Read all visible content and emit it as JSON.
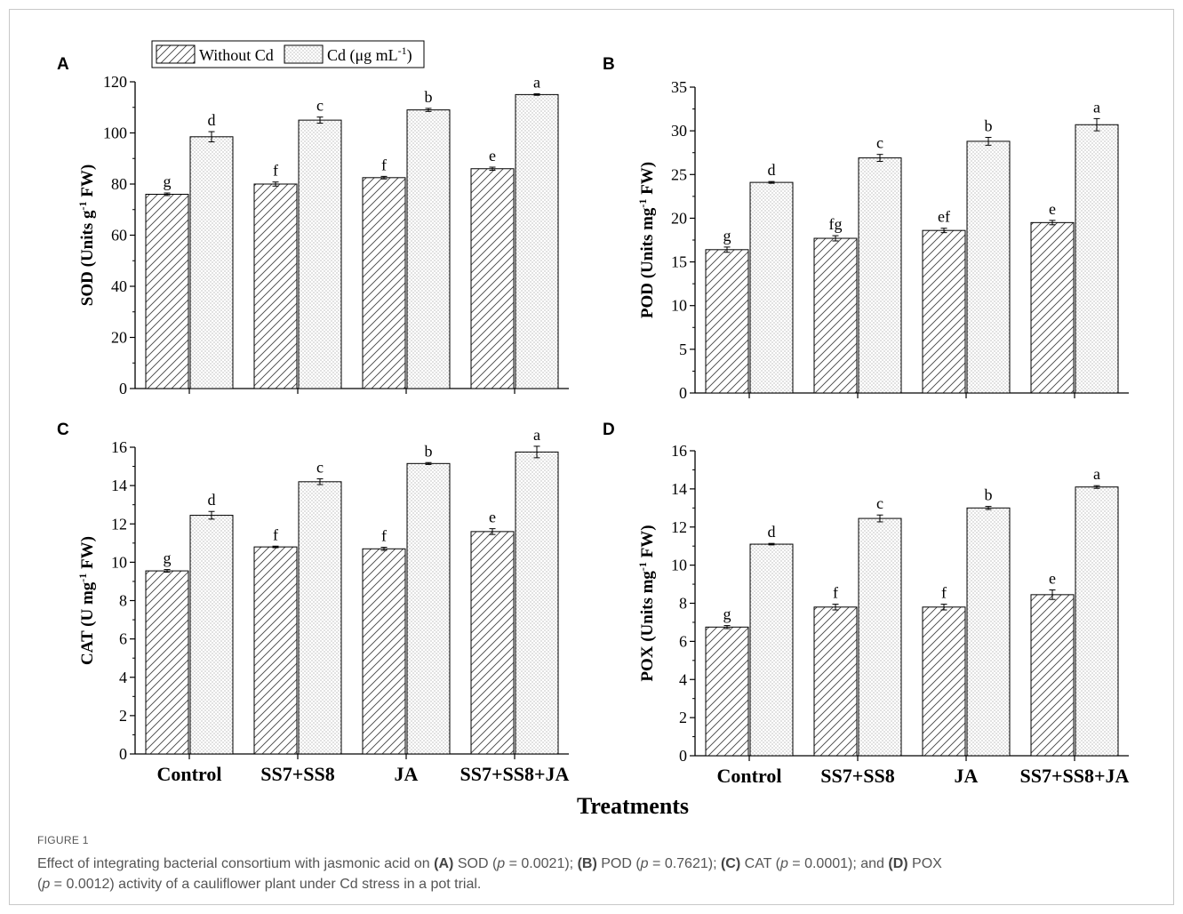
{
  "legend": {
    "items": [
      {
        "label_main": "Without Cd",
        "label_sup": "",
        "label_end": "",
        "pattern": "hatch"
      },
      {
        "label_main": "Cd (μg mL",
        "label_sup": "-1",
        "label_end": ")",
        "pattern": "dots"
      }
    ]
  },
  "x_title": "Treatments",
  "caption": {
    "label": "FIGURE 1",
    "parts": [
      {
        "t": "Effect of integrating bacterial consortium with jasmonic acid on ",
        "s": ""
      },
      {
        "t": "(A)",
        "s": "b"
      },
      {
        "t": " SOD (",
        "s": ""
      },
      {
        "t": "p",
        "s": "i"
      },
      {
        "t": " = 0.0021); ",
        "s": ""
      },
      {
        "t": "(B)",
        "s": "b"
      },
      {
        "t": " POD (",
        "s": ""
      },
      {
        "t": "p",
        "s": "i"
      },
      {
        "t": " = 0.7621); ",
        "s": ""
      },
      {
        "t": "(C)",
        "s": "b"
      },
      {
        "t": " CAT (",
        "s": ""
      },
      {
        "t": "p",
        "s": "i"
      },
      {
        "t": " = 0.0001); and ",
        "s": ""
      },
      {
        "t": "(D)",
        "s": "b"
      },
      {
        "t": " POX",
        "s": ""
      },
      {
        "t": "\n",
        "s": ""
      },
      {
        "t": "(",
        "s": ""
      },
      {
        "t": "p",
        "s": "i"
      },
      {
        "t": " = 0.0012) activity of a cauliflower plant under Cd stress in a pot trial.",
        "s": ""
      }
    ]
  },
  "chart_data": [
    {
      "panel": "A",
      "type": "bar",
      "categories": [
        "Control",
        "SS7+SS8",
        "JA",
        "SS7+SS8+JA"
      ],
      "ylabel_pre": "SOD (Units g",
      "ylabel_sup": "-1",
      "ylabel_post": " FW)",
      "ylim": [
        0,
        120
      ],
      "yticks": [
        0,
        20,
        40,
        60,
        80,
        100,
        120
      ],
      "show_xticklabels": false,
      "series": [
        {
          "name": "Without Cd",
          "values": [
            76,
            80,
            82.5,
            86
          ],
          "errors": [
            0.5,
            0.8,
            0.5,
            0.6
          ],
          "letters": [
            "g",
            "f",
            "f",
            "e"
          ]
        },
        {
          "name": "Cd (μg mL-1)",
          "values": [
            98.5,
            105,
            109,
            115
          ],
          "errors": [
            2,
            1.2,
            0.6,
            0.3
          ],
          "letters": [
            "d",
            "c",
            "b",
            "a"
          ]
        }
      ]
    },
    {
      "panel": "B",
      "type": "bar",
      "categories": [
        "Control",
        "SS7+SS8",
        "JA",
        "SS7+SS8+JA"
      ],
      "ylabel_pre": "POD (Units mg",
      "ylabel_sup": "-1",
      "ylabel_post": " FW)",
      "ylim": [
        0,
        35
      ],
      "yticks": [
        0,
        5,
        10,
        15,
        20,
        25,
        30,
        35
      ],
      "show_xticklabels": false,
      "series": [
        {
          "name": "Without Cd",
          "values": [
            16.4,
            17.7,
            18.6,
            19.5
          ],
          "errors": [
            0.3,
            0.3,
            0.25,
            0.25
          ],
          "letters": [
            "g",
            "fg",
            "ef",
            "e"
          ]
        },
        {
          "name": "Cd (μg mL-1)",
          "values": [
            24.1,
            26.9,
            28.8,
            30.7
          ],
          "errors": [
            0.1,
            0.4,
            0.45,
            0.7
          ],
          "letters": [
            "d",
            "c",
            "b",
            "a"
          ]
        }
      ]
    },
    {
      "panel": "C",
      "type": "bar",
      "categories": [
        "Control",
        "SS7+SS8",
        "JA",
        "SS7+SS8+JA"
      ],
      "ylabel_pre": "CAT (U mg",
      "ylabel_sup": "-1",
      "ylabel_post": " FW)",
      "ylim": [
        0,
        16
      ],
      "yticks": [
        0,
        2,
        4,
        6,
        8,
        10,
        12,
        14,
        16
      ],
      "show_xticklabels": true,
      "series": [
        {
          "name": "Without Cd",
          "values": [
            9.55,
            10.8,
            10.7,
            11.6
          ],
          "errors": [
            0.07,
            0.04,
            0.08,
            0.15
          ],
          "letters": [
            "g",
            "f",
            "f",
            "e"
          ]
        },
        {
          "name": "Cd (μg mL-1)",
          "values": [
            12.45,
            14.2,
            15.15,
            15.75
          ],
          "errors": [
            0.2,
            0.15,
            0.05,
            0.3
          ],
          "letters": [
            "d",
            "c",
            "b",
            "a"
          ]
        }
      ]
    },
    {
      "panel": "D",
      "type": "bar",
      "categories": [
        "Control",
        "SS7+SS8",
        "JA",
        "SS7+SS8+JA"
      ],
      "ylabel_pre": "POX (Units mg",
      "ylabel_sup": "-1",
      "ylabel_post": " FW)",
      "ylim": [
        0,
        16
      ],
      "yticks": [
        0,
        2,
        4,
        6,
        8,
        10,
        12,
        14,
        16
      ],
      "show_xticklabels": true,
      "series": [
        {
          "name": "Without Cd",
          "values": [
            6.75,
            7.8,
            7.8,
            8.45
          ],
          "errors": [
            0.08,
            0.15,
            0.15,
            0.25
          ],
          "letters": [
            "g",
            "f",
            "f",
            "e"
          ]
        },
        {
          "name": "Cd (μg mL-1)",
          "values": [
            11.1,
            12.45,
            13,
            14.1
          ],
          "errors": [
            0.04,
            0.18,
            0.08,
            0.07
          ],
          "letters": [
            "d",
            "c",
            "b",
            "a"
          ]
        }
      ]
    }
  ]
}
